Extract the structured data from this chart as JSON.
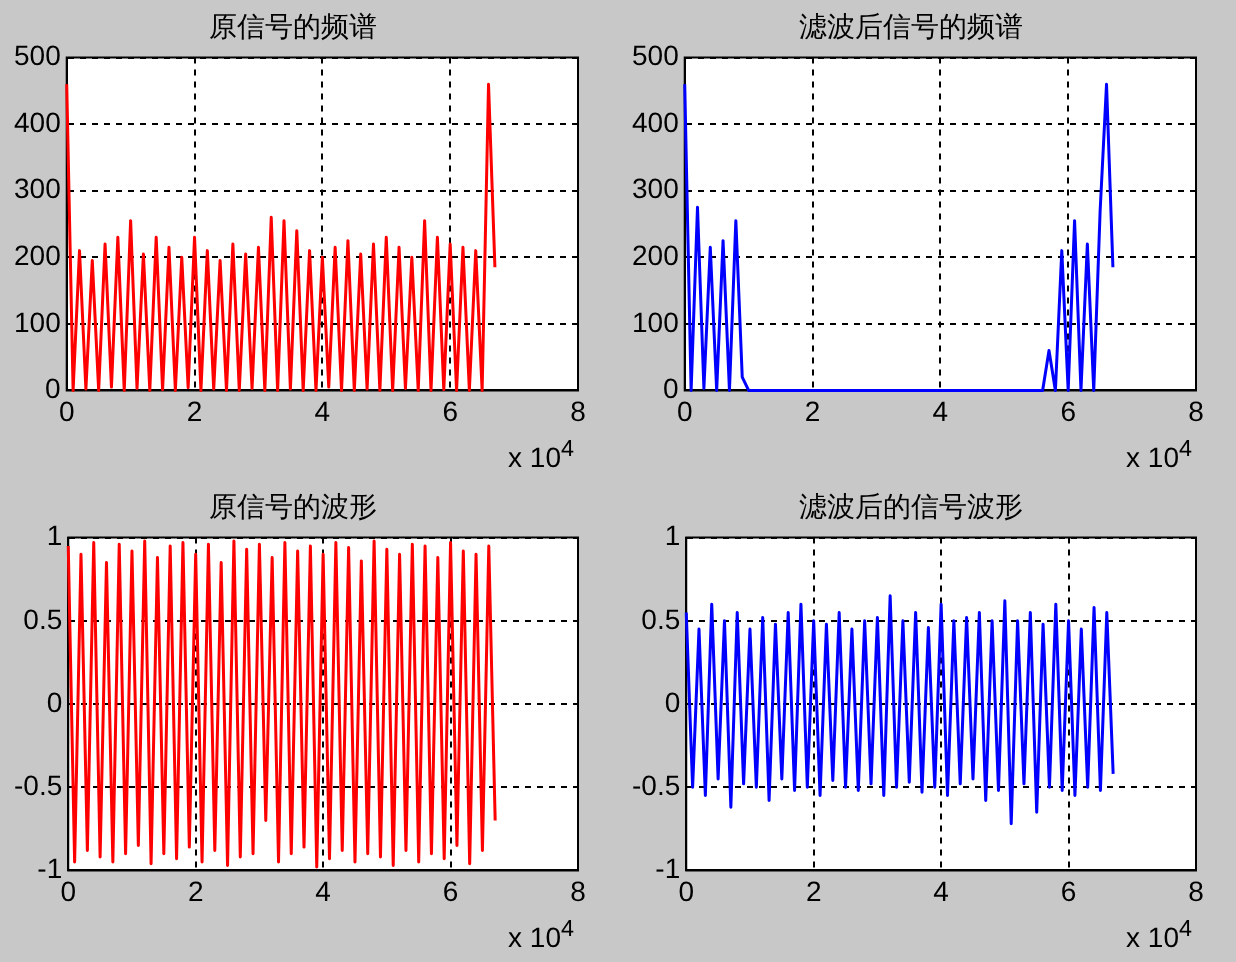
{
  "chart_data": [
    {
      "type": "line",
      "title": "原信号的频谱",
      "marker": "none",
      "line_style": "solid",
      "grid": true,
      "xlim": [
        0,
        8
      ],
      "ylim": [
        0,
        500
      ],
      "xticks": [
        0,
        2,
        4,
        6,
        8
      ],
      "yticks": [
        0,
        100,
        200,
        300,
        400,
        500
      ],
      "annotations": [
        "x 10$^{4}$"
      ],
      "x": [
        0,
        0.1,
        0.2,
        0.3,
        0.4,
        0.5,
        0.6,
        0.7,
        0.8,
        0.9,
        1,
        1.1,
        1.2,
        1.3,
        1.4,
        1.5,
        1.6,
        1.7,
        1.8,
        1.9,
        2,
        2.1,
        2.2,
        2.3,
        2.4,
        2.5,
        2.6,
        2.7,
        2.8,
        2.9,
        3,
        3.1,
        3.2,
        3.3,
        3.4,
        3.5,
        3.6,
        3.7,
        3.8,
        3.9,
        4,
        4.1,
        4.2,
        4.3,
        4.4,
        4.5,
        4.6,
        4.7,
        4.8,
        4.9,
        5,
        5.1,
        5.2,
        5.3,
        5.4,
        5.5,
        5.6,
        5.7,
        5.8,
        5.9,
        6,
        6.1,
        6.2,
        6.3,
        6.4,
        6.5,
        6.6,
        6.7
      ],
      "series": [
        {
          "color": "#ff0000",
          "values": [
            460,
            0,
            210,
            2,
            195,
            0,
            220,
            5,
            230,
            0,
            255,
            3,
            205,
            0,
            230,
            1,
            215,
            0,
            200,
            4,
            230,
            0,
            210,
            2,
            195,
            0,
            220,
            0,
            205,
            3,
            215,
            0,
            260,
            0,
            255,
            2,
            240,
            0,
            210,
            0,
            200,
            5,
            215,
            0,
            225,
            0,
            205,
            2,
            220,
            0,
            230,
            0,
            215,
            3,
            200,
            0,
            255,
            0,
            230,
            1,
            220,
            0,
            215,
            0,
            210,
            0,
            460,
            185
          ]
        }
      ]
    },
    {
      "type": "line",
      "title": "滤波后信号的频谱",
      "marker": "none",
      "line_style": "solid",
      "grid": true,
      "xlim": [
        0,
        8
      ],
      "ylim": [
        0,
        500
      ],
      "xticks": [
        0,
        2,
        4,
        6,
        8
      ],
      "yticks": [
        0,
        100,
        200,
        300,
        400,
        500
      ],
      "annotations": [
        "x 10$^{4}$"
      ],
      "x": [
        0,
        0.1,
        0.2,
        0.3,
        0.4,
        0.5,
        0.6,
        0.7,
        0.8,
        0.9,
        1,
        1.1,
        1.2,
        1.3,
        1.4,
        1.5,
        1.6,
        1.7,
        1.8,
        1.9,
        2,
        2.1,
        2.2,
        2.3,
        2.4,
        2.5,
        2.6,
        2.7,
        2.8,
        2.9,
        3,
        3.1,
        3.2,
        3.3,
        3.4,
        3.5,
        3.6,
        3.7,
        3.8,
        3.9,
        4,
        4.1,
        4.2,
        4.3,
        4.4,
        4.5,
        4.6,
        4.7,
        4.8,
        4.9,
        5,
        5.1,
        5.2,
        5.3,
        5.4,
        5.5,
        5.6,
        5.7,
        5.8,
        5.9,
        6,
        6.1,
        6.2,
        6.3,
        6.4,
        6.5,
        6.6,
        6.7
      ],
      "series": [
        {
          "color": "#0000ff",
          "values": [
            460,
            0,
            275,
            3,
            215,
            0,
            225,
            0,
            255,
            20,
            0,
            0,
            0,
            0,
            0,
            0,
            0,
            0,
            0,
            0,
            0,
            0,
            0,
            0,
            0,
            0,
            0,
            0,
            0,
            0,
            0,
            0,
            0,
            0,
            0,
            0,
            0,
            0,
            0,
            0,
            0,
            0,
            0,
            0,
            0,
            0,
            0,
            0,
            0,
            0,
            0,
            0,
            0,
            0,
            0,
            0,
            0,
            60,
            0,
            210,
            0,
            255,
            0,
            220,
            0,
            270,
            460,
            185
          ]
        }
      ]
    },
    {
      "type": "line",
      "title": "原信号的波形",
      "marker": "none",
      "line_style": "solid",
      "grid": true,
      "xlim": [
        0,
        8
      ],
      "ylim": [
        -1,
        1
      ],
      "xticks": [
        0,
        2,
        4,
        6,
        8
      ],
      "yticks": [
        -1,
        -0.5,
        0,
        0.5,
        1
      ],
      "annotations": [
        "x 10$^{4}$"
      ],
      "x": [
        0,
        0.1,
        0.2,
        0.3,
        0.4,
        0.5,
        0.6,
        0.7,
        0.8,
        0.9,
        1,
        1.1,
        1.2,
        1.3,
        1.4,
        1.5,
        1.6,
        1.7,
        1.8,
        1.9,
        2,
        2.1,
        2.2,
        2.3,
        2.4,
        2.5,
        2.6,
        2.7,
        2.8,
        2.9,
        3,
        3.1,
        3.2,
        3.3,
        3.4,
        3.5,
        3.6,
        3.7,
        3.8,
        3.9,
        4,
        4.1,
        4.2,
        4.3,
        4.4,
        4.5,
        4.6,
        4.7,
        4.8,
        4.9,
        5,
        5.1,
        5.2,
        5.3,
        5.4,
        5.5,
        5.6,
        5.7,
        5.8,
        5.9,
        6,
        6.1,
        6.2,
        6.3,
        6.4,
        6.5,
        6.6,
        6.7
      ],
      "series": [
        {
          "color": "#ff0000",
          "values": [
            0.95,
            -0.95,
            0.9,
            -0.88,
            0.97,
            -0.92,
            0.85,
            -0.95,
            0.96,
            -0.9,
            0.92,
            -0.85,
            0.98,
            -0.96,
            0.88,
            -0.9,
            0.95,
            -0.93,
            0.97,
            -0.86,
            0.9,
            -0.95,
            0.96,
            -0.88,
            0.85,
            -0.97,
            0.98,
            -0.92,
            0.93,
            -0.9,
            0.96,
            -0.7,
            0.88,
            -0.95,
            0.97,
            -0.9,
            0.92,
            -0.86,
            0.95,
            -0.98,
            0.9,
            -0.93,
            0.97,
            -0.88,
            0.94,
            -0.95,
            0.86,
            -0.9,
            0.98,
            -0.92,
            0.93,
            -0.97,
            0.9,
            -0.88,
            0.96,
            -0.95,
            0.95,
            -0.9,
            0.88,
            -0.93,
            0.97,
            -0.85,
            0.92,
            -0.96,
            0.9,
            -0.88,
            0.95,
            -0.7
          ]
        }
      ]
    },
    {
      "type": "line",
      "title": "滤波后的信号波形",
      "marker": "none",
      "line_style": "solid",
      "grid": true,
      "xlim": [
        0,
        8
      ],
      "ylim": [
        -1,
        1
      ],
      "xticks": [
        0,
        2,
        4,
        6,
        8
      ],
      "yticks": [
        -1,
        -0.5,
        0,
        0.5,
        1
      ],
      "annotations": [
        "x 10$^{4}$"
      ],
      "x": [
        0,
        0.1,
        0.2,
        0.3,
        0.4,
        0.5,
        0.6,
        0.7,
        0.8,
        0.9,
        1,
        1.1,
        1.2,
        1.3,
        1.4,
        1.5,
        1.6,
        1.7,
        1.8,
        1.9,
        2,
        2.1,
        2.2,
        2.3,
        2.4,
        2.5,
        2.6,
        2.7,
        2.8,
        2.9,
        3,
        3.1,
        3.2,
        3.3,
        3.4,
        3.5,
        3.6,
        3.7,
        3.8,
        3.9,
        4,
        4.1,
        4.2,
        4.3,
        4.4,
        4.5,
        4.6,
        4.7,
        4.8,
        4.9,
        5,
        5.1,
        5.2,
        5.3,
        5.4,
        5.5,
        5.6,
        5.7,
        5.8,
        5.9,
        6,
        6.1,
        6.2,
        6.3,
        6.4,
        6.5,
        6.6,
        6.7
      ],
      "series": [
        {
          "color": "#0000ff",
          "values": [
            0.55,
            -0.5,
            0.45,
            -0.55,
            0.6,
            -0.45,
            0.5,
            -0.62,
            0.55,
            -0.48,
            0.45,
            -0.5,
            0.52,
            -0.58,
            0.48,
            -0.45,
            0.55,
            -0.52,
            0.6,
            -0.5,
            0.5,
            -0.55,
            0.48,
            -0.46,
            0.55,
            -0.5,
            0.45,
            -0.52,
            0.5,
            -0.48,
            0.52,
            -0.55,
            0.65,
            -0.5,
            0.5,
            -0.47,
            0.55,
            -0.53,
            0.46,
            -0.5,
            0.6,
            -0.55,
            0.5,
            -0.48,
            0.52,
            -0.45,
            0.55,
            -0.58,
            0.5,
            -0.52,
            0.62,
            -0.72,
            0.5,
            -0.48,
            0.55,
            -0.65,
            0.48,
            -0.5,
            0.6,
            -0.52,
            0.5,
            -0.55,
            0.45,
            -0.5,
            0.58,
            -0.52,
            0.55,
            -0.42
          ]
        }
      ]
    }
  ]
}
